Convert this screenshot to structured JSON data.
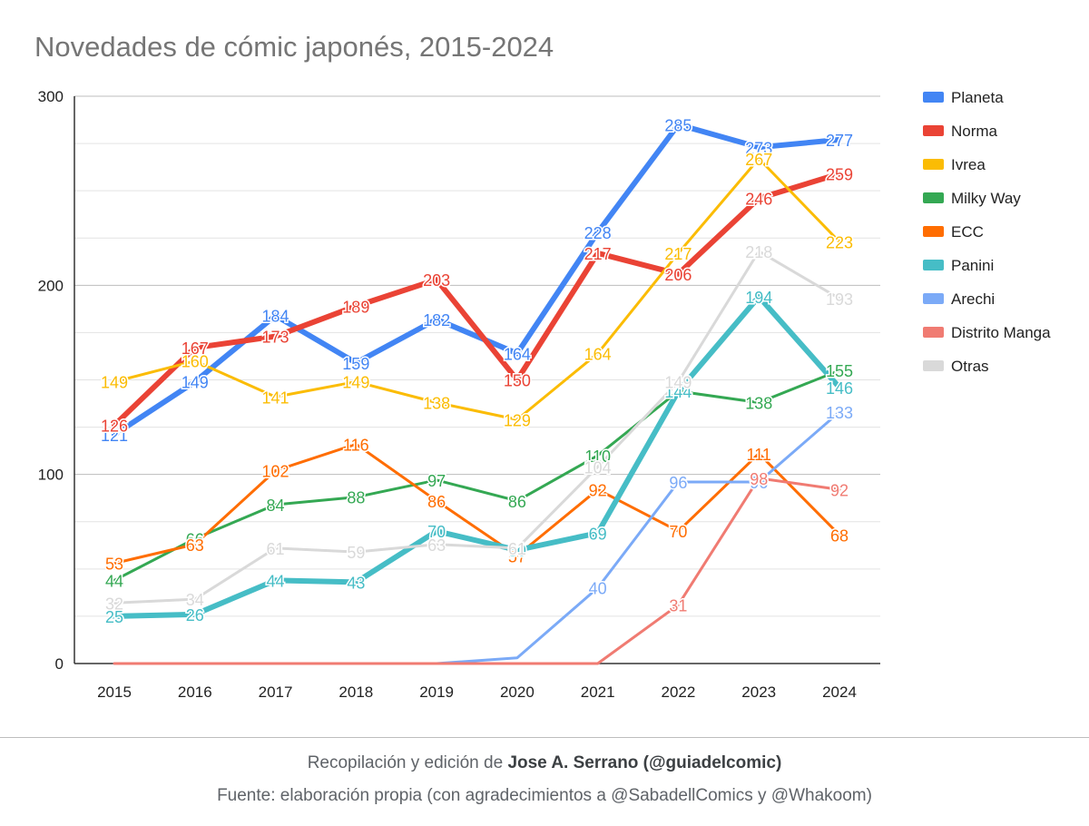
{
  "chart_data": {
    "type": "line",
    "title": "Novedades de cómic japonés, 2015-2024",
    "xlabel": "",
    "ylabel": "",
    "x": [
      "2015",
      "2016",
      "2017",
      "2018",
      "2019",
      "2020",
      "2021",
      "2022",
      "2023",
      "2024"
    ],
    "ylim": [
      0,
      300
    ],
    "yticks": [
      "0",
      "100",
      "200",
      "300"
    ],
    "grid": true,
    "legend_position": "right",
    "series": [
      {
        "name": "Planeta",
        "color": "#4285f4",
        "values": [
          121,
          149,
          184,
          159,
          182,
          164,
          228,
          285,
          273,
          277
        ],
        "labels": [
          "121",
          "149",
          "184",
          "159",
          "182",
          "164",
          "228",
          "285",
          "273",
          "277"
        ]
      },
      {
        "name": "Norma",
        "color": "#ea4335",
        "values": [
          126,
          167,
          173,
          189,
          203,
          150,
          217,
          206,
          246,
          259
        ],
        "labels": [
          "126",
          "167",
          "173",
          "189",
          "203",
          "150",
          "217",
          "206",
          "246",
          "259"
        ]
      },
      {
        "name": "Ivrea",
        "color": "#fbbc04",
        "values": [
          149,
          160,
          141,
          149,
          138,
          129,
          164,
          217,
          267,
          223
        ],
        "labels": [
          "149",
          "160",
          "141",
          "149",
          "138",
          "129",
          "164",
          "217",
          "267",
          "223"
        ]
      },
      {
        "name": "Milky Way",
        "color": "#34a853",
        "values": [
          44,
          66,
          84,
          88,
          97,
          86,
          110,
          144,
          138,
          155
        ],
        "labels": [
          "44",
          "66",
          "84",
          "88",
          "97",
          "86",
          "110",
          "144",
          "138",
          "155"
        ]
      },
      {
        "name": "ECC",
        "color": "#ff6d01",
        "values": [
          53,
          63,
          102,
          116,
          86,
          57,
          92,
          70,
          111,
          68
        ],
        "labels": [
          "53",
          "63",
          "102",
          "116",
          "86",
          "57",
          "92",
          "70",
          "111",
          "68"
        ]
      },
      {
        "name": "Panini",
        "color": "#46bdc6",
        "values": [
          25,
          26,
          44,
          43,
          70,
          60,
          69,
          144,
          194,
          146
        ],
        "labels": [
          "25",
          "26",
          "44",
          "43",
          "70",
          "60",
          "69",
          "144",
          "194",
          "146"
        ]
      },
      {
        "name": "Arechi",
        "color": "#7baaf7",
        "values": [
          0,
          0,
          0,
          0,
          0,
          3,
          40,
          96,
          96,
          133
        ],
        "labels": [
          "",
          "",
          "",
          "",
          "",
          "",
          "40",
          "96",
          "96",
          "133"
        ]
      },
      {
        "name": "Distrito Manga",
        "color": "#f07b72",
        "values": [
          0,
          0,
          0,
          0,
          0,
          0,
          0,
          31,
          98,
          92
        ],
        "labels": [
          "",
          "",
          "",
          "",
          "",
          "",
          "",
          "31",
          "98",
          "92"
        ]
      },
      {
        "name": "Otras",
        "color": "#d9d9d9",
        "values": [
          32,
          34,
          61,
          59,
          63,
          61,
          104,
          149,
          218,
          193
        ],
        "labels": [
          "32",
          "34",
          "61",
          "59",
          "63",
          "61",
          "104",
          "149",
          "218",
          "193"
        ]
      }
    ]
  },
  "footer": {
    "credit_prefix": "Recopilación y edición de ",
    "credit_author": "Jose A. Serrano (@guiadelcomic)",
    "source": "Fuente: elaboración propia (con agradecimientos a @SabadellComics y @Whakoom)"
  }
}
